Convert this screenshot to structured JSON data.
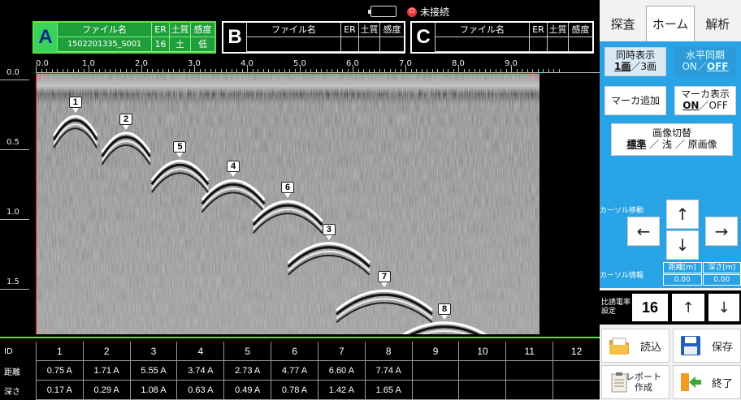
{
  "status": {
    "connection_text": "未接続",
    "power_icon": "power-icon"
  },
  "panels": [
    {
      "letter": "A",
      "hdr_filename": "ファイル名",
      "hdr_er": "ER",
      "hdr_soil": "土質",
      "hdr_sens": "感度",
      "filename": "1502201335_S001",
      "er": "16",
      "soil": "土",
      "sens": "低"
    },
    {
      "letter": "B",
      "hdr_filename": "ファイル名",
      "hdr_er": "ER",
      "hdr_soil": "土質",
      "hdr_sens": "感度",
      "filename": "",
      "er": "",
      "soil": "",
      "sens": ""
    },
    {
      "letter": "C",
      "hdr_filename": "ファイル名",
      "hdr_er": "ER",
      "hdr_soil": "土質",
      "hdr_sens": "感度",
      "filename": "",
      "er": "",
      "soil": "",
      "sens": ""
    }
  ],
  "h_axis": [
    "0.0",
    "1.0",
    "2.0",
    "3.0",
    "4.0",
    "5.0",
    "6.0",
    "7.0",
    "8.0",
    "9.0"
  ],
  "v_axis": [
    "0.0",
    "0.5",
    "1.0",
    "1.5"
  ],
  "markers": [
    {
      "id": "1",
      "distance_m": 0.75,
      "depth_m": 0.17
    },
    {
      "id": "2",
      "distance_m": 1.71,
      "depth_m": 0.29
    },
    {
      "id": "3",
      "distance_m": 5.55,
      "depth_m": 1.08
    },
    {
      "id": "4",
      "distance_m": 3.74,
      "depth_m": 0.63
    },
    {
      "id": "5",
      "distance_m": 2.73,
      "depth_m": 0.49
    },
    {
      "id": "6",
      "distance_m": 4.77,
      "depth_m": 0.78
    },
    {
      "id": "7",
      "distance_m": 6.6,
      "depth_m": 1.42
    },
    {
      "id": "8",
      "distance_m": 7.74,
      "depth_m": 1.65
    }
  ],
  "table": {
    "row_labels": [
      "ID",
      "距離",
      "深さ"
    ],
    "ids": [
      "1",
      "2",
      "3",
      "4",
      "5",
      "6",
      "7",
      "8",
      "9",
      "10",
      "11",
      "12"
    ],
    "distance": [
      "0.75 A",
      "1.71 A",
      "5.55 A",
      "3.74 A",
      "2.73 A",
      "4.77 A",
      "6.60 A",
      "7.74 A",
      "",
      "",
      "",
      ""
    ],
    "depth": [
      "0.17 A",
      "0.29 A",
      "1.08 A",
      "0.63 A",
      "0.49 A",
      "0.78 A",
      "1.42 A",
      "1.65 A",
      "",
      "",
      "",
      ""
    ]
  },
  "side": {
    "tabs": [
      "探査",
      "ホーム",
      "解析"
    ],
    "active_tab": "ホーム",
    "sync_display": {
      "line1": "同時表示",
      "opt_a": "1画",
      "sep": "／",
      "opt_b": "3画"
    },
    "h_sync": {
      "line1": "水平同期",
      "opt_a": "ON",
      "sep": "／",
      "opt_b": "OFF"
    },
    "add_marker": "マーカ追加",
    "marker_display": {
      "line1": "マーカ表示",
      "opt_a": "ON",
      "sep": "／",
      "opt_b": "OFF"
    },
    "image_switch": {
      "line1": "画像切替",
      "opt_a": "標準",
      "sep1": " ／ ",
      "opt_b": "浅",
      "sep2": " ／ ",
      "opt_c": "原画像"
    },
    "cursor_move_label": "カーソル移動",
    "cursor_info_label": "カーソル情報",
    "cursor_info": {
      "dist_header": "距離[m]",
      "depth_header": "深さ[m]",
      "dist_value": "0.00",
      "depth_value": "0.00"
    },
    "arrows": {
      "up": "↑",
      "down": "↓",
      "left": "←",
      "right": "→"
    },
    "dielectric": {
      "label_line1": "比誘電率",
      "label_line2": "設定",
      "value": "16",
      "up": "↑",
      "down": "↓"
    },
    "actions": {
      "load": "読込",
      "save": "保存",
      "report_line1": "レポート",
      "report_line2": "作成",
      "exit": "終了"
    }
  },
  "colors": {
    "accent_green": "#5be24a",
    "panel_green": "#1f9e3c",
    "side_blue": "#28a4e6",
    "alert_red": "#e33333"
  }
}
